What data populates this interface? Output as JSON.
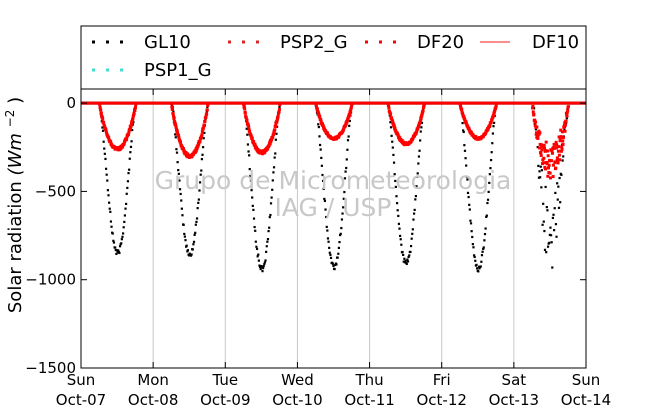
{
  "chart_data": {
    "type": "scatter",
    "ylabel": "Solar radiation (W m^-2)",
    "ylabel_main": "Solar radiation",
    "ylabel_unit": "(Wm",
    "ylabel_exp": "−2",
    "ylabel_close": ")",
    "ylim": [
      -1500,
      80
    ],
    "yticks": [
      0,
      -500,
      -1000,
      -1500
    ],
    "ytick_labels": [
      "0",
      "−500",
      "−1000",
      "−1500"
    ],
    "x_days": [
      "Sun\nOct-07",
      "Mon\nOct-08",
      "Tue\nOct-09",
      "Wed\nOct-10",
      "Thu\nOct-11",
      "Fri\nOct-12",
      "Sat\nOct-13",
      "Sun\nOct-14"
    ],
    "x_day_names": [
      "Sun",
      "Mon",
      "Tue",
      "Wed",
      "Thu",
      "Fri",
      "Sat",
      "Sun"
    ],
    "x_dates": [
      "Oct-07",
      "Oct-08",
      "Oct-09",
      "Oct-10",
      "Oct-11",
      "Oct-12",
      "Oct-13",
      "Oct-14"
    ],
    "grid": "vertical at day boundaries",
    "legend_position": "top (outside plot)",
    "watermark_line1": "Grupo de Micrometeorologia",
    "watermark_line2": "IAG / USP",
    "series": [
      {
        "name": "GL10",
        "color": "#000000",
        "marker": "dots",
        "daily": [
          {
            "day": "Oct-07",
            "min": -850
          },
          {
            "day": "Oct-08",
            "min": -860
          },
          {
            "day": "Oct-09",
            "min": -940
          },
          {
            "day": "Oct-10",
            "min": -930
          },
          {
            "day": "Oct-11",
            "min": -910
          },
          {
            "day": "Oct-12",
            "min": -940
          },
          {
            "day": "Oct-13",
            "min": -1000
          }
        ]
      },
      {
        "name": "PSP2_G",
        "color": "#d62728",
        "marker": "dots",
        "daily": []
      },
      {
        "name": "DF20",
        "color": "#ff0000",
        "marker": "dots",
        "daily": [
          {
            "day": "Oct-07",
            "min": -260
          },
          {
            "day": "Oct-08",
            "min": -300
          },
          {
            "day": "Oct-09",
            "min": -280
          },
          {
            "day": "Oct-10",
            "min": -200
          },
          {
            "day": "Oct-11",
            "min": -230
          },
          {
            "day": "Oct-12",
            "min": -200
          },
          {
            "day": "Oct-13",
            "min": -430
          }
        ]
      },
      {
        "name": "DF10",
        "color": "#ff6666",
        "marker": "line",
        "daily": []
      },
      {
        "name": "PSP1_G",
        "color": "#40e0d0",
        "marker": "dots",
        "daily": []
      }
    ]
  }
}
